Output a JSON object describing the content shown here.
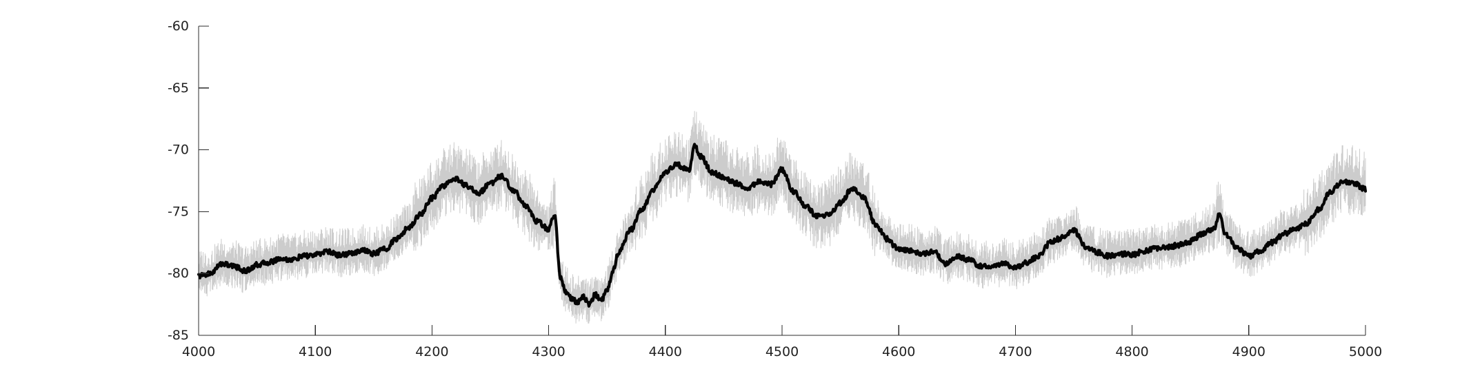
{
  "chart_data": {
    "type": "line",
    "title": "",
    "xlabel": "",
    "ylabel": "",
    "xlim": [
      4000,
      5000
    ],
    "ylim": [
      -85,
      -60
    ],
    "xticks": [
      4000,
      4100,
      4200,
      4300,
      4400,
      4500,
      4600,
      4700,
      4800,
      4900,
      5000
    ],
    "yticks": [
      -85,
      -80,
      -75,
      -70,
      -65,
      -60
    ],
    "x_tick_labels": [
      "4000",
      "4100",
      "4200",
      "4300",
      "4400",
      "4500",
      "4600",
      "4700",
      "4800",
      "4900",
      "5000"
    ],
    "y_tick_labels": [
      "-85",
      "-80",
      "-75",
      "-70",
      "-65",
      "-60"
    ],
    "grid": false,
    "legend": "none",
    "colors": {
      "mean_line": "#050505",
      "variability_band": "#c9c9c9",
      "axis": "#2b2b2b",
      "text": "#222222"
    },
    "series": [
      {
        "x": [
          4000,
          4010,
          4020,
          4030,
          4040,
          4050,
          4060,
          4070,
          4080,
          4090,
          4100,
          4110,
          4120,
          4130,
          4140,
          4150,
          4160,
          4170,
          4180,
          4190,
          4200,
          4210,
          4220,
          4230,
          4240,
          4250,
          4260,
          4270,
          4280,
          4290,
          4300,
          4305,
          4310,
          4315,
          4320,
          4325,
          4330,
          4335,
          4340,
          4345,
          4350,
          4355,
          4360,
          4370,
          4380,
          4390,
          4400,
          4410,
          4420,
          4425,
          4430,
          4440,
          4450,
          4460,
          4470,
          4480,
          4490,
          4500,
          4510,
          4520,
          4530,
          4540,
          4550,
          4560,
          4570,
          4580,
          4590,
          4600,
          4610,
          4620,
          4630,
          4640,
          4650,
          4660,
          4670,
          4680,
          4690,
          4700,
          4710,
          4720,
          4730,
          4740,
          4750,
          4760,
          4770,
          4780,
          4790,
          4800,
          4810,
          4820,
          4830,
          4840,
          4850,
          4860,
          4870,
          4875,
          4880,
          4890,
          4900,
          4910,
          4920,
          4930,
          4940,
          4950,
          4960,
          4970,
          4980,
          4990,
          5000
        ],
        "y": [
          -80.2,
          -80.0,
          -79.2,
          -79.4,
          -79.8,
          -79.3,
          -79.1,
          -78.8,
          -78.9,
          -78.6,
          -78.5,
          -78.2,
          -78.5,
          -78.4,
          -78.1,
          -78.4,
          -78.0,
          -77.2,
          -76.3,
          -75.2,
          -73.9,
          -72.9,
          -72.3,
          -72.9,
          -73.5,
          -72.7,
          -72.1,
          -73.3,
          -74.5,
          -75.8,
          -76.4,
          -75.2,
          -80.3,
          -81.5,
          -82.1,
          -82.3,
          -81.9,
          -82.5,
          -81.7,
          -82.2,
          -81.4,
          -79.8,
          -78.3,
          -76.5,
          -74.8,
          -73.2,
          -71.8,
          -71.2,
          -71.7,
          -69.7,
          -70.5,
          -71.8,
          -72.2,
          -72.7,
          -73.1,
          -72.6,
          -72.8,
          -71.6,
          -73.4,
          -74.5,
          -75.4,
          -75.2,
          -74.3,
          -73.1,
          -73.8,
          -76.0,
          -77.2,
          -78.1,
          -78.1,
          -78.4,
          -78.2,
          -79.2,
          -78.6,
          -78.9,
          -79.4,
          -79.5,
          -79.2,
          -79.5,
          -79.1,
          -78.6,
          -77.5,
          -77.1,
          -76.5,
          -77.8,
          -78.3,
          -78.6,
          -78.4,
          -78.5,
          -78.2,
          -78.0,
          -77.9,
          -77.7,
          -77.4,
          -76.8,
          -76.4,
          -75.2,
          -76.8,
          -77.9,
          -78.6,
          -78.2,
          -77.5,
          -76.8,
          -76.4,
          -75.9,
          -74.8,
          -73.4,
          -72.6,
          -72.7,
          -73.2
        ]
      }
    ]
  }
}
